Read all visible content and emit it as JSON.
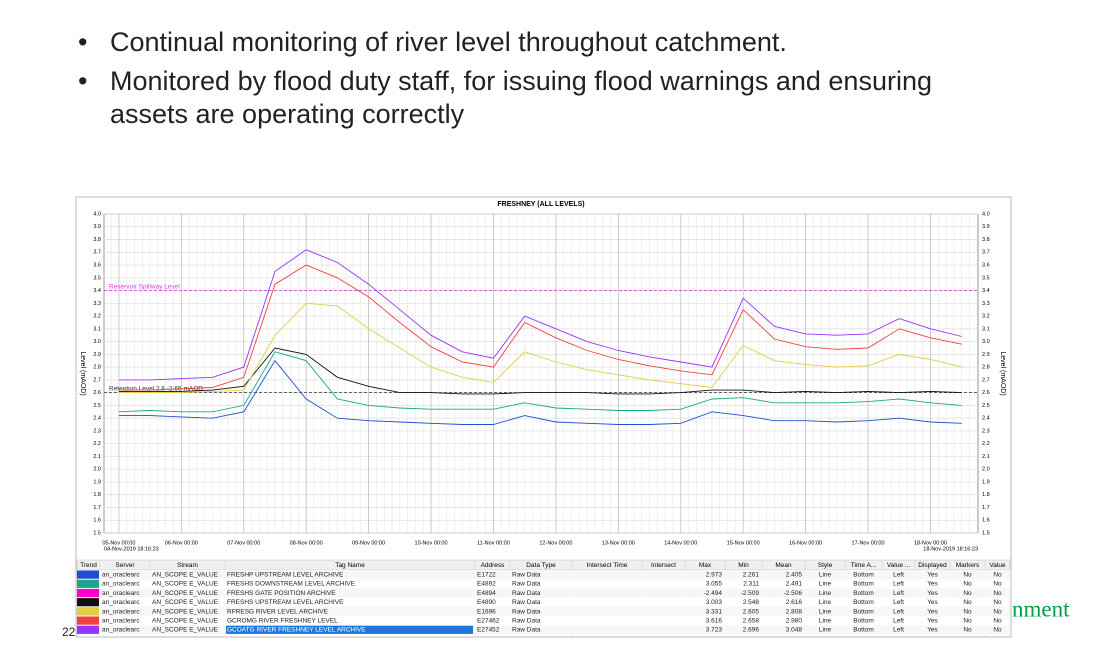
{
  "bullets": [
    "Continual monitoring of river level throughout catchment.",
    "Monitored by flood duty staff, for issuing flood warnings and ensuring assets are operating correctly"
  ],
  "slide_number": "22",
  "logo_text": "nment",
  "chart_data": {
    "type": "line",
    "title": "FRESHNEY (ALL LEVELS)",
    "y_label": "Level (mAOD)",
    "xlim": [
      "04-Nov-2019 18:16:23",
      "18-Nov-2019 18:16:23"
    ],
    "xticks": [
      "05-Nov 00:00",
      "06-Nov 00:00",
      "07-Nov 00:00",
      "08-Nov 00:00",
      "09-Nov 00:00",
      "10-Nov 00:00",
      "11-Nov 00:00",
      "12-Nov 00:00",
      "13-Nov 00:00",
      "14-Nov 00:00",
      "15-Nov 00:00",
      "16-Nov 00:00",
      "17-Nov 00:00",
      "18-Nov 00:00"
    ],
    "ylim": [
      1.5,
      4.0
    ],
    "yticks": [
      {
        "value": 4,
        "label": "4.0"
      },
      3.9,
      3.8,
      3.7,
      3.6,
      3.5,
      3.4,
      3.3,
      3.2,
      3.1,
      {
        "value": 3,
        "label": "3.0"
      },
      2.9,
      2.8,
      2.7,
      2.6,
      2.5,
      2.4,
      2.3,
      2.2,
      2.1,
      {
        "value": 2,
        "label": "2.0"
      },
      1.9,
      1.8,
      1.7,
      1.6,
      1.5
    ],
    "grid": true,
    "annotations": [
      {
        "text": "Reservoir Spillway Level",
        "value": 3.4,
        "color": "#e040e0"
      },
      {
        "text": "Retention Level 2.6 -2.65 mAOD",
        "value": 2.6,
        "color": "#333333"
      }
    ],
    "x": [
      "05-Nov 00:00",
      "05-Nov 12:00",
      "06-Nov 00:00",
      "06-Nov 12:00",
      "07-Nov 00:00",
      "07-Nov 12:00",
      "08-Nov 00:00",
      "08-Nov 12:00",
      "09-Nov 00:00",
      "09-Nov 12:00",
      "10-Nov 00:00",
      "10-Nov 12:00",
      "11-Nov 00:00",
      "11-Nov 12:00",
      "12-Nov 00:00",
      "12-Nov 12:00",
      "13-Nov 00:00",
      "13-Nov 12:00",
      "14-Nov 00:00",
      "14-Nov 12:00",
      "15-Nov 00:00",
      "15-Nov 12:00",
      "16-Nov 00:00",
      "16-Nov 12:00",
      "17-Nov 00:00",
      "17-Nov 12:00",
      "18-Nov 00:00",
      "18-Nov 12:00"
    ],
    "series": [
      {
        "name": "FRESHP UPSTREAM LEVEL ARCHIVE",
        "color": "#1f4fd0",
        "values": [
          2.42,
          2.42,
          2.41,
          2.4,
          2.45,
          2.85,
          2.55,
          2.4,
          2.38,
          2.37,
          2.36,
          2.35,
          2.35,
          2.42,
          2.37,
          2.36,
          2.35,
          2.35,
          2.36,
          2.45,
          2.42,
          2.38,
          2.38,
          2.37,
          2.38,
          2.4,
          2.37,
          2.36
        ]
      },
      {
        "name": "FRESHS DOWNSTREAM LEVEL ARCHIVE",
        "color": "#1aa88a",
        "values": [
          2.45,
          2.46,
          2.45,
          2.45,
          2.5,
          2.92,
          2.85,
          2.55,
          2.5,
          2.48,
          2.47,
          2.47,
          2.47,
          2.52,
          2.48,
          2.47,
          2.46,
          2.46,
          2.47,
          2.55,
          2.56,
          2.52,
          2.52,
          2.52,
          2.53,
          2.55,
          2.52,
          2.5
        ]
      },
      {
        "name": "FRESHS UPSTREAM LEVEL ARCHIVE",
        "color": "#111111",
        "values": [
          2.61,
          2.61,
          2.61,
          2.62,
          2.65,
          2.95,
          2.9,
          2.72,
          2.65,
          2.6,
          2.6,
          2.59,
          2.59,
          2.6,
          2.6,
          2.6,
          2.59,
          2.59,
          2.6,
          2.62,
          2.62,
          2.6,
          2.61,
          2.6,
          2.61,
          2.6,
          2.61,
          2.6
        ]
      },
      {
        "name": "RFRESG RIVER LEVEL ARCHIVE",
        "color": "#e0d040",
        "values": [
          2.6,
          2.6,
          2.6,
          2.61,
          2.62,
          3.05,
          3.3,
          3.28,
          3.1,
          2.95,
          2.8,
          2.72,
          2.68,
          2.92,
          2.84,
          2.78,
          2.74,
          2.7,
          2.67,
          2.64,
          2.97,
          2.85,
          2.82,
          2.8,
          2.81,
          2.9,
          2.86,
          2.8
        ]
      },
      {
        "name": "GCROMG RIVER FRESHNEY LEVEL",
        "color": "#f04040",
        "values": [
          2.62,
          2.62,
          2.63,
          2.64,
          2.72,
          3.45,
          3.6,
          3.5,
          3.35,
          3.15,
          2.96,
          2.84,
          2.8,
          3.15,
          3.03,
          2.93,
          2.86,
          2.81,
          2.77,
          2.74,
          3.25,
          3.02,
          2.96,
          2.94,
          2.95,
          3.1,
          3.03,
          2.98
        ]
      },
      {
        "name": "GCOATG RIVER FRESHNEY LEVEL ARCHIVE",
        "color": "#9933ff",
        "values": [
          2.7,
          2.7,
          2.71,
          2.72,
          2.8,
          3.55,
          3.72,
          3.62,
          3.45,
          3.25,
          3.05,
          2.92,
          2.87,
          3.2,
          3.1,
          3.0,
          2.93,
          2.88,
          2.84,
          2.8,
          3.34,
          3.12,
          3.06,
          3.05,
          3.06,
          3.18,
          3.1,
          3.04
        ]
      }
    ]
  },
  "table": {
    "columns": [
      "Trend",
      "Server",
      "Stream",
      "Tag Name",
      "Address",
      "Data Type",
      "Intersect Time",
      "Intersect",
      "Max",
      "Min",
      "Mean",
      "Style",
      "Time A...",
      "Value ...",
      "Displayed",
      "Markers",
      "Value"
    ],
    "rows": [
      {
        "color": "#1f4fd0",
        "cells": {
          "1": "an_oraclearc",
          "2": "AN_SCOPE E_VALUE",
          "3": "FRESHP UPSTREAM LEVEL ARCHIVE",
          "4": "E1722",
          "5": "Raw Data",
          "8": "2.973",
          "9": "2.261",
          "10": "2.405",
          "11": "Line",
          "12": "Bottom",
          "13": "Left",
          "14": "Yes",
          "15": "No",
          "16": "No"
        }
      },
      {
        "color": "#1aa88a",
        "cells": {
          "1": "an_oraclearc",
          "2": "AN_SCOPE E_VALUE",
          "3": "FRESHS DOWNSTREAM LEVEL ARCHIVE",
          "4": "E4892",
          "5": "Raw Data",
          "8": "3.055",
          "9": "2.311",
          "10": "2.491",
          "11": "Line",
          "12": "Bottom",
          "13": "Left",
          "14": "Yes",
          "15": "No",
          "16": "No"
        }
      },
      {
        "color": "#ff00cc",
        "cells": {
          "1": "an_oraclearc",
          "2": "AN_SCOPE E_VALUE",
          "3": "FRESHS GATE POSITION ARCHIVE",
          "4": "E4894",
          "5": "Raw Data",
          "8": "-2.494",
          "9": "-2.509",
          "10": "-2.506",
          "11": "Line",
          "12": "Bottom",
          "13": "Left",
          "14": "Yes",
          "15": "No",
          "16": "No"
        }
      },
      {
        "color": "#111111",
        "cells": {
          "1": "an_oraclearc",
          "2": "AN_SCOPE E_VALUE",
          "3": "FRESHS UPSTREAM LEVEL ARCHIVE",
          "4": "E4890",
          "5": "Raw Data",
          "8": "3.003",
          "9": "2.548",
          "10": "2.616",
          "11": "Line",
          "12": "Bottom",
          "13": "Left",
          "14": "Yes",
          "15": "No",
          "16": "No"
        }
      },
      {
        "color": "#e0d040",
        "cells": {
          "1": "an_oraclearc",
          "2": "AN_SCOPE E_VALUE",
          "3": "RFRESG RIVER LEVEL ARCHIVE",
          "4": "E1696",
          "5": "Raw Data",
          "8": "3.331",
          "9": "2.605",
          "10": "2.808",
          "11": "Line",
          "12": "Bottom",
          "13": "Left",
          "14": "Yes",
          "15": "No",
          "16": "No"
        }
      },
      {
        "color": "#f04040",
        "cells": {
          "1": "an_oraclearc",
          "2": "AN_SCOPE E_VALUE",
          "3": "GCROMG RIVER FRESHNEY LEVEL",
          "4": "E27462",
          "5": "Raw Data",
          "8": "3.616",
          "9": "2.658",
          "10": "2.980",
          "11": "Line",
          "12": "Bottom",
          "13": "Left",
          "14": "Yes",
          "15": "No",
          "16": "No"
        }
      },
      {
        "color": "#9933ff",
        "selected": true,
        "cells": {
          "1": "an_oraclearc",
          "2": "AN_SCOPE E_VALUE",
          "3": "GCOATG RIVER FRESHNEY LEVEL ARCHIVE",
          "4": "E27452",
          "5": "Raw Data",
          "8": "3.723",
          "9": "2.696",
          "10": "3.048",
          "11": "Line",
          "12": "Bottom",
          "13": "Left",
          "14": "Yes",
          "15": "No",
          "16": "No"
        }
      }
    ]
  }
}
